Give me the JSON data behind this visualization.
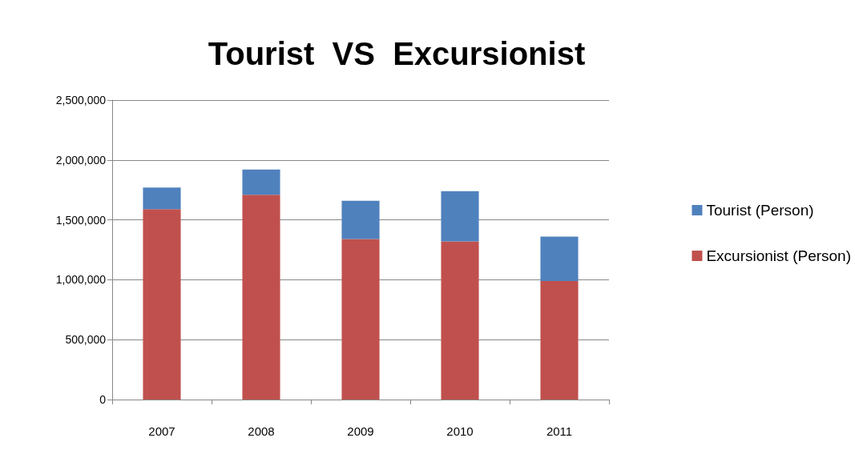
{
  "chart_data": {
    "type": "bar",
    "title": "Tourist  VS  Excursionist",
    "categories": [
      "2007",
      "2008",
      "2009",
      "2010",
      "2011"
    ],
    "series": [
      {
        "name": "Excursionist (Person)",
        "color": "#c0504d",
        "values": [
          1590000,
          1710000,
          1340000,
          1320000,
          990000
        ]
      },
      {
        "name": "Tourist (Person)",
        "color": "#4f81bd",
        "values": [
          180000,
          210000,
          320000,
          420000,
          370000
        ]
      }
    ],
    "stacked": true,
    "ylim": [
      0,
      2500000
    ],
    "yticks": [
      0,
      {
        "value": 500000,
        "label": "500,000"
      },
      {
        "value": 1000000,
        "label": "1,000,000"
      },
      {
        "value": 1500000,
        "label": "1,500,000"
      },
      {
        "value": 2000000,
        "label": "2,000,000"
      },
      {
        "value": 2500000,
        "label": "2,500,000"
      }
    ],
    "grid": "y",
    "legend": "right"
  }
}
